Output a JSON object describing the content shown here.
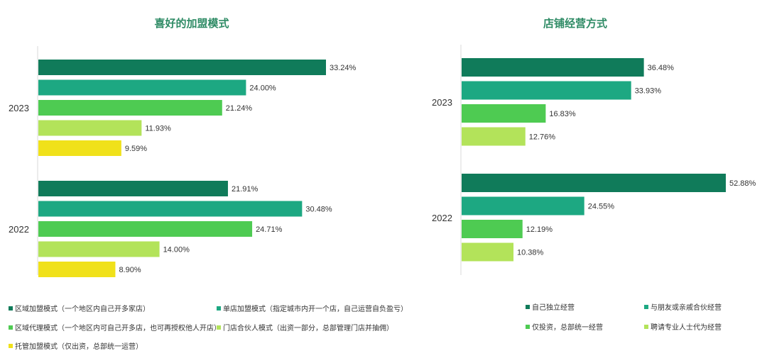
{
  "chart_data": [
    {
      "type": "bar",
      "orientation": "horizontal",
      "title": "喜好的加盟模式",
      "categories": [
        "2023",
        "2022"
      ],
      "xlim": [
        0,
        35
      ],
      "series": [
        {
          "name": "区域加盟模式（一个地区内自己开多家店）",
          "color": "#107b5a",
          "values": [
            33.24,
            21.91
          ],
          "labels": [
            "33.24%",
            "21.91%"
          ]
        },
        {
          "name": "单店加盟模式（指定城市内开一个店，自己运营自负盈亏）",
          "color": "#1da882",
          "values": [
            24.0,
            30.48
          ],
          "labels": [
            "24.00%",
            "30.48%"
          ]
        },
        {
          "name": "区域代理模式（一个地区内可自己开多店，也可再授权他人开店）",
          "color": "#4ecb52",
          "values": [
            21.24,
            24.71
          ],
          "labels": [
            "21.24%",
            "24.71%"
          ]
        },
        {
          "name": "门店合伙人模式（出资一部分，总部管理门店并抽佣）",
          "color": "#b3e35a",
          "values": [
            11.93,
            14.0
          ],
          "labels": [
            "11.93%",
            "14.00%"
          ]
        },
        {
          "name": "托管加盟模式（仅出资，总部统一运营）",
          "color": "#f0e11a",
          "values": [
            9.59,
            8.9
          ],
          "labels": [
            "9.59%",
            "8.90%"
          ]
        }
      ]
    },
    {
      "type": "bar",
      "orientation": "horizontal",
      "title": "店铺经营方式",
      "categories": [
        "2023",
        "2022"
      ],
      "xlim": [
        0,
        55
      ],
      "series": [
        {
          "name": "自己独立经营",
          "color": "#107b5a",
          "values": [
            36.48,
            52.88
          ],
          "labels": [
            "36.48%",
            "52.88%"
          ]
        },
        {
          "name": "与朋友或亲戚合伙经营",
          "color": "#1da882",
          "values": [
            33.93,
            24.55
          ],
          "labels": [
            "33.93%",
            "24.55%"
          ]
        },
        {
          "name": "仅投资，总部统一经营",
          "color": "#4ecb52",
          "values": [
            16.83,
            12.19
          ],
          "labels": [
            "16.83%",
            "12.19%"
          ]
        },
        {
          "name": "聘请专业人士代为经营",
          "color": "#b3e35a",
          "values": [
            12.76,
            10.38
          ],
          "labels": [
            "12.76%",
            "10.38%"
          ]
        }
      ]
    }
  ]
}
